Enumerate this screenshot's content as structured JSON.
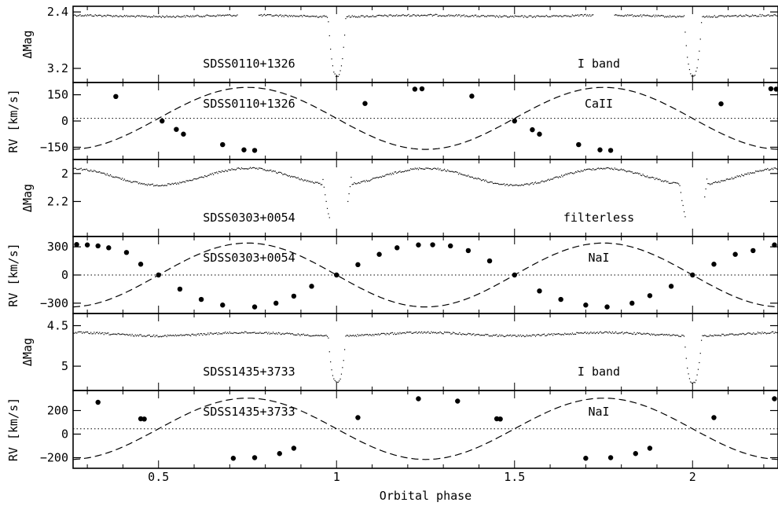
{
  "chart_data": {
    "type": "multi-panel line/scatter",
    "xlabel": "Orbital phase",
    "xlim": [
      0.26,
      2.24
    ],
    "xticks": [
      "0.5",
      "1",
      "1.5",
      "2"
    ],
    "xtick_values": [
      0.5,
      1,
      1.5,
      2
    ],
    "panels": [
      {
        "kind": "lightcurve",
        "object": "SDSS0110+1326",
        "band": "I band",
        "ylabel": "ΔMag",
        "ylim": [
          2.32,
          3.4
        ],
        "reversed": true,
        "yticks": [
          2.4,
          3.2
        ],
        "ytick_labels": [
          "2.4",
          "3.2"
        ],
        "baseline": 2.45,
        "wave_amp": 0.01,
        "eclipse_depth": 3.3,
        "eclipse_halfwidth": 0.025,
        "gaps": [
          [
            0.72,
            0.78
          ],
          [
            1.72,
            1.78
          ]
        ]
      },
      {
        "kind": "rv",
        "object": "SDSS0110+1326",
        "line": "CaII",
        "ylabel": "RV [km/s]",
        "ylim": [
          -220,
          220
        ],
        "yticks": [
          150,
          0,
          -150
        ],
        "ytick_labels": [
          "150",
          "0",
          "−150"
        ],
        "gamma": 15,
        "K": 177,
        "points": [
          [
            0.38,
            140
          ],
          [
            0.51,
            0
          ],
          [
            0.55,
            -48
          ],
          [
            0.57,
            -75
          ],
          [
            0.68,
            -135
          ],
          [
            0.74,
            -165
          ],
          [
            0.77,
            -168
          ],
          [
            1.08,
            100
          ],
          [
            1.22,
            182
          ],
          [
            1.24,
            184
          ],
          [
            1.38,
            142
          ],
          [
            1.5,
            0
          ],
          [
            1.55,
            -50
          ],
          [
            1.57,
            -75
          ],
          [
            1.68,
            -135
          ],
          [
            1.74,
            -165
          ],
          [
            1.77,
            -168
          ],
          [
            2.08,
            98
          ],
          [
            2.22,
            184
          ],
          [
            2.235,
            182
          ]
        ]
      },
      {
        "kind": "lightcurve",
        "object": "SDSS0303+0054",
        "band": "filterless",
        "ylabel": "ΔMag",
        "ylim": [
          1.9,
          2.45
        ],
        "reversed": true,
        "yticks": [
          2,
          2.2
        ],
        "ytick_labels": [
          "2",
          "2.2"
        ],
        "baseline": 2.02,
        "wave_amp": 0.06,
        "eclipse_depth": 2.38,
        "eclipse_halfwidth": 0.04,
        "gaps": [
          [
            0.98,
            1.03
          ],
          [
            1.98,
            2.03
          ]
        ]
      },
      {
        "kind": "rv",
        "object": "SDSS0303+0054",
        "line": "NaI",
        "ylabel": "RV [km/s]",
        "ylim": [
          -410,
          410
        ],
        "yticks": [
          300,
          0,
          -300
        ],
        "ytick_labels": [
          "300",
          "0",
          "−300"
        ],
        "gamma": 0,
        "K": 340,
        "points": [
          [
            0.27,
            325
          ],
          [
            0.3,
            320
          ],
          [
            0.33,
            310
          ],
          [
            0.36,
            290
          ],
          [
            0.41,
            240
          ],
          [
            0.45,
            115
          ],
          [
            0.5,
            0
          ],
          [
            0.56,
            -150
          ],
          [
            0.62,
            -260
          ],
          [
            0.68,
            -320
          ],
          [
            0.77,
            -340
          ],
          [
            0.83,
            -300
          ],
          [
            0.88,
            -225
          ],
          [
            0.93,
            -120
          ],
          [
            1.0,
            0
          ],
          [
            1.06,
            110
          ],
          [
            1.12,
            220
          ],
          [
            1.17,
            290
          ],
          [
            1.23,
            320
          ],
          [
            1.27,
            322
          ],
          [
            1.32,
            310
          ],
          [
            1.37,
            260
          ],
          [
            1.43,
            150
          ],
          [
            1.5,
            0
          ],
          [
            1.57,
            -170
          ],
          [
            1.63,
            -260
          ],
          [
            1.7,
            -320
          ],
          [
            1.76,
            -340
          ],
          [
            1.83,
            -300
          ],
          [
            1.88,
            -220
          ],
          [
            1.94,
            -120
          ],
          [
            2.0,
            0
          ],
          [
            2.06,
            115
          ],
          [
            2.12,
            220
          ],
          [
            2.17,
            260
          ],
          [
            2.23,
            320
          ]
        ]
      },
      {
        "kind": "lightcurve",
        "object": "SDSS1435+3733",
        "band": "I band",
        "ylabel": "ΔMag",
        "ylim": [
          4.35,
          5.3
        ],
        "reversed": true,
        "yticks": [
          4.5,
          5
        ],
        "ytick_labels": [
          "4.5",
          "5"
        ],
        "baseline": 4.6,
        "wave_amp": 0.02,
        "eclipse_depth": 5.2,
        "eclipse_halfwidth": 0.025,
        "gaps": []
      },
      {
        "kind": "rv",
        "object": "SDSS1435+3733",
        "line": "NaI",
        "ylabel": "RV [km/s]",
        "ylim": [
          -290,
          370
        ],
        "yticks": [
          200,
          0,
          -200
        ],
        "ytick_labels": [
          "200",
          "0",
          "−200"
        ],
        "gamma": 45,
        "K": 260,
        "points": [
          [
            0.33,
            270
          ],
          [
            0.45,
            130
          ],
          [
            0.46,
            128
          ],
          [
            0.71,
            -205
          ],
          [
            0.77,
            -200
          ],
          [
            0.84,
            -165
          ],
          [
            0.88,
            -120
          ],
          [
            1.06,
            140
          ],
          [
            1.23,
            300
          ],
          [
            1.34,
            280
          ],
          [
            1.45,
            130
          ],
          [
            1.46,
            128
          ],
          [
            1.7,
            -205
          ],
          [
            1.77,
            -200
          ],
          [
            1.84,
            -165
          ],
          [
            1.88,
            -120
          ],
          [
            2.06,
            140
          ],
          [
            2.23,
            300
          ]
        ]
      }
    ]
  }
}
